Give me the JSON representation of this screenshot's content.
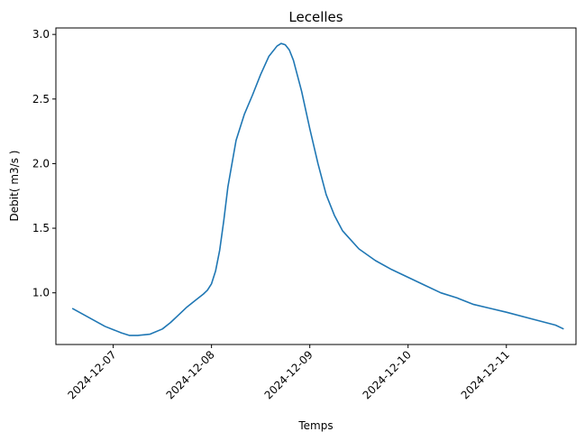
{
  "chart_data": {
    "type": "line",
    "title": "Lecelles",
    "xlabel": "Temps",
    "ylabel": "Debit( m3/s )",
    "x_ticks": [
      "2024-12-07",
      "2024-12-08",
      "2024-12-09",
      "2024-12-10",
      "2024-12-11"
    ],
    "y_ticks": [
      "1.0",
      "1.5",
      "2.0",
      "2.5",
      "3.0"
    ],
    "xlim": [
      "2024-12-06 10:00",
      "2024-12-11 17:00"
    ],
    "ylim": [
      0.6,
      3.05
    ],
    "grid": false,
    "series": [
      {
        "color": "#1f77b4",
        "x": [
          "2024-12-06 14:00",
          "2024-12-06 18:00",
          "2024-12-06 22:00",
          "2024-12-07 02:00",
          "2024-12-07 04:00",
          "2024-12-07 06:00",
          "2024-12-07 09:00",
          "2024-12-07 12:00",
          "2024-12-07 14:00",
          "2024-12-07 16:00",
          "2024-12-07 18:00",
          "2024-12-07 20:00",
          "2024-12-07 22:00",
          "2024-12-07 23:00",
          "2024-12-08 00:00",
          "2024-12-08 01:00",
          "2024-12-08 02:00",
          "2024-12-08 03:00",
          "2024-12-08 04:00",
          "2024-12-08 06:00",
          "2024-12-08 08:00",
          "2024-12-08 10:00",
          "2024-12-08 12:00",
          "2024-12-08 14:00",
          "2024-12-08 16:00",
          "2024-12-08 17:00",
          "2024-12-08 18:00",
          "2024-12-08 19:00",
          "2024-12-08 20:00",
          "2024-12-08 22:00",
          "2024-12-09 00:00",
          "2024-12-09 02:00",
          "2024-12-09 04:00",
          "2024-12-09 06:00",
          "2024-12-09 08:00",
          "2024-12-09 12:00",
          "2024-12-09 16:00",
          "2024-12-09 20:00",
          "2024-12-10 00:00",
          "2024-12-10 04:00",
          "2024-12-10 08:00",
          "2024-12-10 12:00",
          "2024-12-10 16:00",
          "2024-12-10 20:00",
          "2024-12-11 00:00",
          "2024-12-11 06:00",
          "2024-12-11 12:00",
          "2024-12-11 14:00"
        ],
        "values": [
          0.88,
          0.81,
          0.74,
          0.69,
          0.67,
          0.67,
          0.68,
          0.72,
          0.77,
          0.83,
          0.89,
          0.94,
          0.99,
          1.02,
          1.07,
          1.17,
          1.33,
          1.56,
          1.82,
          2.18,
          2.38,
          2.53,
          2.69,
          2.83,
          2.91,
          2.93,
          2.92,
          2.88,
          2.8,
          2.56,
          2.27,
          2.0,
          1.76,
          1.6,
          1.48,
          1.34,
          1.25,
          1.18,
          1.12,
          1.06,
          1.0,
          0.96,
          0.91,
          0.88,
          0.85,
          0.8,
          0.75,
          0.72
        ]
      }
    ]
  }
}
